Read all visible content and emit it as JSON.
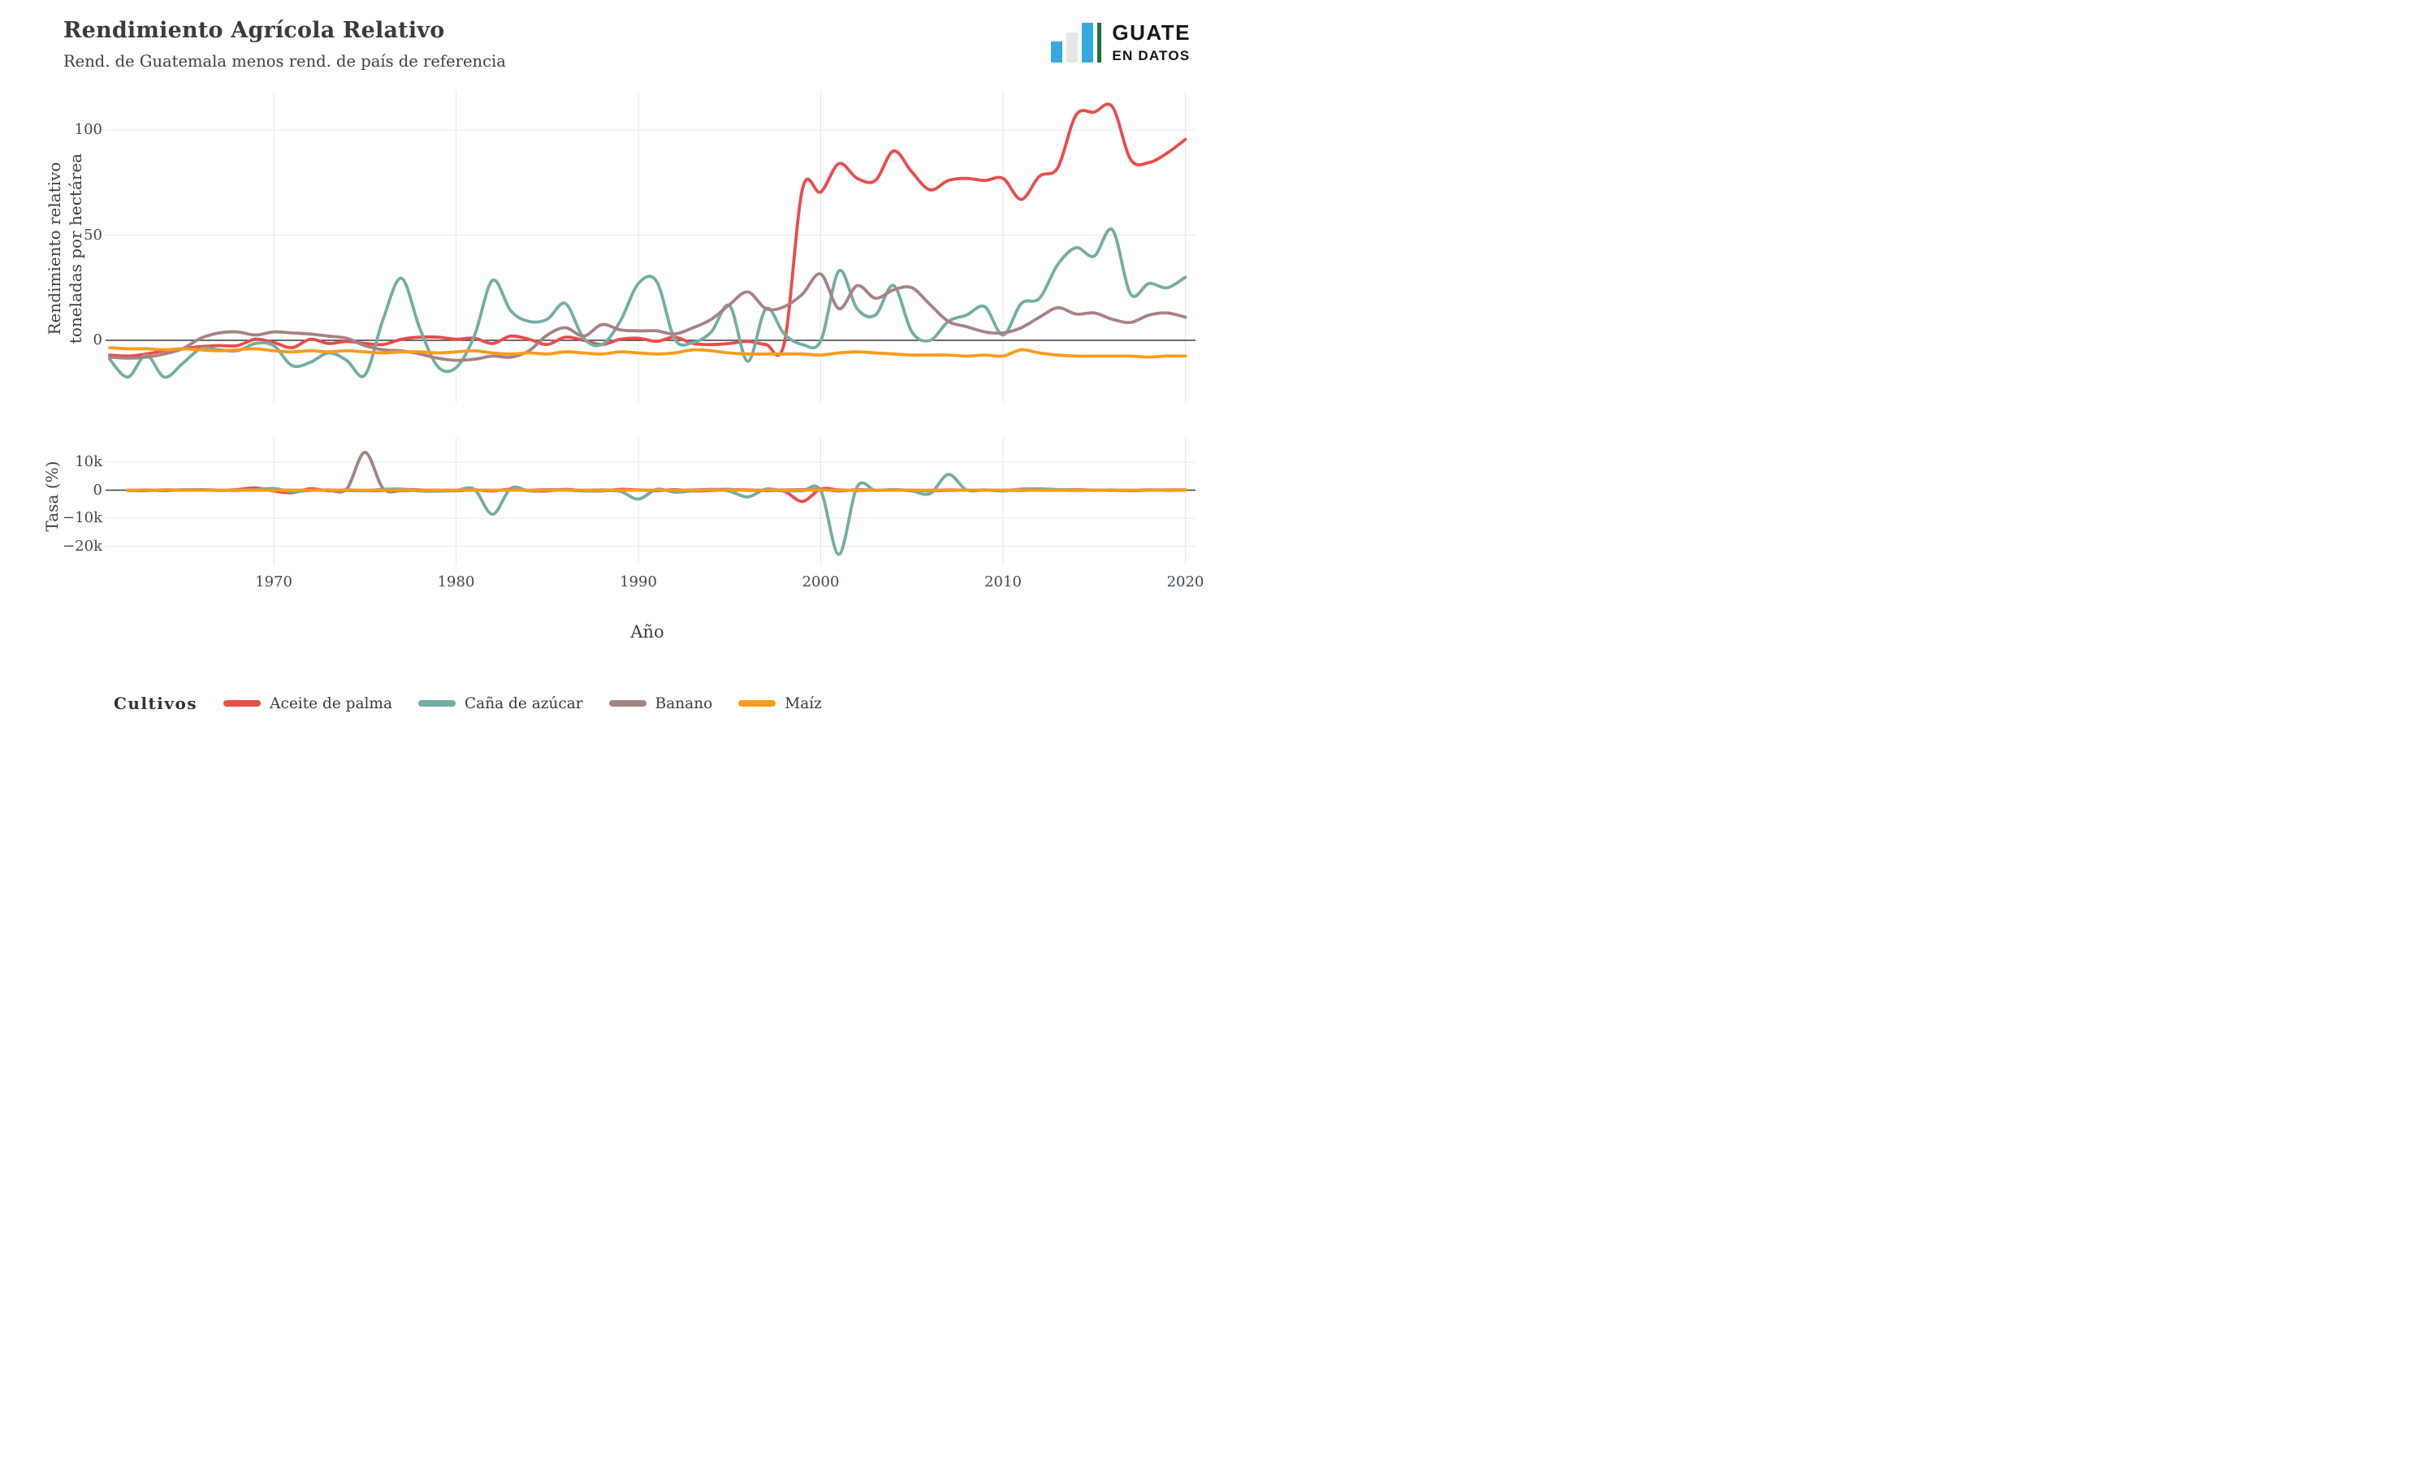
{
  "title": "Rendimiento Agrícola Relativo",
  "subtitle": "Rend. de Guatemala menos rend. de país de referencia",
  "logo": {
    "line1": "GUATE",
    "line2": "EN DATOS",
    "bar_color_blue": "#38A8E0",
    "bar_color_gray": "#E6E6E6",
    "divider_color_green": "#20713B"
  },
  "xlabel": "Año",
  "legend": {
    "title": "Cultivos"
  },
  "styles": {
    "grid_color": "#E8E8E8",
    "zero_line_color": "#3C3C3C",
    "tick_color": "#3D4A57"
  },
  "chart_data": [
    {
      "type": "line",
      "panel": "top",
      "ylabel_line1": "Rendimiento relativo",
      "ylabel_line2": "toneladas por hectárea",
      "ylim": [
        -29,
        118
      ],
      "yticks": [
        {
          "value": 100,
          "label": "100"
        },
        {
          "value": 50,
          "label": "50"
        },
        {
          "value": 0,
          "label": "0"
        }
      ],
      "xticks": [
        {
          "value": 1970,
          "label": "1970"
        },
        {
          "value": 1980,
          "label": "1980"
        },
        {
          "value": 1990,
          "label": "1990"
        },
        {
          "value": 2000,
          "label": "2000"
        },
        {
          "value": 2010,
          "label": "2010"
        },
        {
          "value": 2020,
          "label": "2020"
        }
      ],
      "x": [
        1961,
        1962,
        1963,
        1964,
        1965,
        1966,
        1967,
        1968,
        1969,
        1970,
        1971,
        1972,
        1973,
        1974,
        1975,
        1976,
        1977,
        1978,
        1979,
        1980,
        1981,
        1982,
        1983,
        1984,
        1985,
        1986,
        1987,
        1988,
        1989,
        1990,
        1991,
        1992,
        1993,
        1994,
        1995,
        1996,
        1997,
        1998,
        1999,
        2000,
        2001,
        2002,
        2003,
        2004,
        2005,
        2006,
        2007,
        2008,
        2009,
        2010,
        2011,
        2012,
        2013,
        2014,
        2015,
        2016,
        2017,
        2018,
        2019,
        2020
      ],
      "series": [
        {
          "name": "Aceite de palma",
          "color": "#E94C4B",
          "values": [
            -7,
            -7.5,
            -6.5,
            -5,
            -4,
            -3,
            -2.5,
            -2.5,
            0.5,
            -1,
            -3.5,
            0.5,
            -1.5,
            -0.5,
            -1.5,
            -2,
            0.5,
            1.5,
            1.5,
            0.5,
            1,
            -1.5,
            2,
            0.5,
            -2,
            1.5,
            0,
            -2,
            0.5,
            1,
            -0.5,
            1.5,
            -1.5,
            -2,
            -1.5,
            -0.5,
            -2,
            -1.5,
            72,
            70.5,
            84,
            77,
            76,
            90,
            80,
            71.5,
            76,
            77,
            76,
            77,
            67,
            78,
            82,
            107,
            108.5,
            111,
            86,
            84.5,
            89,
            95.5
          ]
        },
        {
          "name": "Caña de azúcar",
          "color": "#74ADA3",
          "values": [
            -9,
            -17.5,
            -7,
            -17.5,
            -11,
            -4,
            -4.5,
            -5,
            -1.5,
            -2.5,
            -12,
            -10.5,
            -6,
            -9.5,
            -16.5,
            10,
            29.5,
            6,
            -12.5,
            -13,
            2,
            28.5,
            14,
            9,
            10,
            17.5,
            1,
            -2,
            9,
            27,
            28,
            0.5,
            -1,
            4,
            16.5,
            -10,
            15,
            3,
            -2,
            -0.3,
            33,
            15,
            12,
            26,
            4,
            0,
            9,
            12,
            16,
            2.5,
            17.5,
            20,
            36,
            44,
            40,
            52.5,
            22,
            27,
            25,
            30
          ]
        },
        {
          "name": "Banano",
          "color": "#A78284",
          "values": [
            -8,
            -8.5,
            -8,
            -6.5,
            -4,
            1,
            3.5,
            4,
            2.5,
            4,
            3.5,
            3,
            2,
            1,
            -2.5,
            -4.5,
            -5,
            -6.5,
            -8.5,
            -9.5,
            -9,
            -7.5,
            -8,
            -5,
            2.5,
            6,
            2,
            7.5,
            5,
            4.5,
            4.5,
            3,
            6,
            10,
            17,
            23,
            15,
            16,
            22,
            31.5,
            15,
            26,
            20,
            24,
            25,
            17,
            9,
            6.5,
            4,
            3.5,
            6,
            11,
            15.5,
            12.5,
            13,
            10,
            8.5,
            12,
            13,
            11
          ]
        },
        {
          "name": "Maíz",
          "color": "#F99C1C",
          "values": [
            -3.5,
            -4,
            -4,
            -4.5,
            -4,
            -4.5,
            -5,
            -4.5,
            -4,
            -5,
            -5.5,
            -5,
            -5.5,
            -5,
            -5.5,
            -6,
            -5.5,
            -5.5,
            -6,
            -5.5,
            -5,
            -6,
            -6.5,
            -6,
            -6.5,
            -5.5,
            -6,
            -6.5,
            -5.5,
            -6,
            -6.5,
            -6,
            -4.5,
            -5,
            -6,
            -6.5,
            -6.5,
            -6.5,
            -6.5,
            -7,
            -6,
            -5.5,
            -6,
            -6.5,
            -7,
            -7,
            -7,
            -7.5,
            -7,
            -7.5,
            -4.5,
            -6,
            -7,
            -7.5,
            -7.5,
            -7.5,
            -7.5,
            -8,
            -7.5,
            -7.5
          ]
        }
      ]
    },
    {
      "type": "line",
      "panel": "bottom",
      "ylabel": "Tasa (%)",
      "ylim": [
        -26500,
        18500
      ],
      "yticks": [
        {
          "value": 10000,
          "label": "10k"
        },
        {
          "value": 0,
          "label": "0"
        },
        {
          "value": -10000,
          "label": "−10k"
        },
        {
          "value": -20000,
          "label": "−20k"
        }
      ],
      "x": [
        1962,
        1963,
        1964,
        1965,
        1966,
        1967,
        1968,
        1969,
        1970,
        1971,
        1972,
        1973,
        1974,
        1975,
        1976,
        1977,
        1978,
        1979,
        1980,
        1981,
        1982,
        1983,
        1984,
        1985,
        1986,
        1987,
        1988,
        1989,
        1990,
        1991,
        1992,
        1993,
        1994,
        1995,
        1996,
        1997,
        1998,
        1999,
        2000,
        2001,
        2002,
        2003,
        2004,
        2005,
        2006,
        2007,
        2008,
        2009,
        2010,
        2011,
        2012,
        2013,
        2014,
        2015,
        2016,
        2017,
        2018,
        2019,
        2020
      ],
      "series": [
        {
          "name": "Aceite de palma",
          "color": "#E94C4B",
          "values": [
            -100,
            -150,
            100,
            50,
            100,
            -100,
            200,
            800,
            -300,
            -900,
            500,
            -200,
            100,
            -150,
            -100,
            300,
            100,
            -100,
            -200,
            100,
            -300,
            400,
            -200,
            -300,
            300,
            -200,
            -300,
            300,
            100,
            -200,
            200,
            -300,
            -100,
            100,
            100,
            -200,
            -400,
            -4000,
            400,
            100,
            -100,
            0,
            100,
            -100,
            -100,
            100,
            0,
            0,
            0,
            -100,
            100,
            0,
            200,
            0,
            0,
            -200,
            0,
            100,
            100
          ]
        },
        {
          "name": "Caña de azúcar",
          "color": "#74ADA3",
          "values": [
            -200,
            100,
            -200,
            150,
            200,
            0,
            -100,
            200,
            600,
            -500,
            -100,
            100,
            -150,
            -200,
            300,
            400,
            -300,
            -350,
            -100,
            300,
            -8600,
            600,
            -200,
            100,
            100,
            -300,
            -200,
            -400,
            -3200,
            300,
            -700,
            -200,
            300,
            -400,
            -2400,
            400,
            -300,
            -200,
            -150,
            -22900,
            1200,
            -100,
            200,
            -300,
            -1200,
            5600,
            100,
            100,
            -300,
            400,
            500,
            200,
            100,
            -100,
            100,
            -200,
            100,
            -100,
            100
          ]
        },
        {
          "name": "Banano",
          "color": "#A78284",
          "values": [
            0,
            0,
            0,
            0,
            100,
            0,
            0,
            0,
            0,
            0,
            0,
            0,
            400,
            13500,
            600,
            -200,
            0,
            0,
            0,
            0,
            0,
            100,
            0,
            200,
            0,
            0,
            100,
            0,
            0,
            0,
            0,
            100,
            200,
            300,
            -100,
            0,
            100,
            200,
            300,
            -300,
            200,
            0,
            100,
            0,
            -200,
            -100,
            0,
            0,
            0,
            100,
            100,
            0,
            -100,
            0,
            -100,
            0,
            100,
            0,
            0
          ]
        },
        {
          "name": "Maíz",
          "color": "#F99C1C",
          "values": [
            0,
            0,
            0,
            0,
            0,
            0,
            0,
            0,
            0,
            0,
            0,
            0,
            0,
            0,
            0,
            0,
            0,
            0,
            0,
            0,
            0,
            0,
            0,
            0,
            0,
            0,
            0,
            0,
            0,
            0,
            0,
            0,
            0,
            0,
            0,
            0,
            0,
            0,
            0,
            0,
            0,
            0,
            0,
            0,
            0,
            0,
            0,
            0,
            0,
            0,
            0,
            0,
            0,
            0,
            0,
            0,
            0,
            0,
            0
          ]
        }
      ]
    }
  ]
}
